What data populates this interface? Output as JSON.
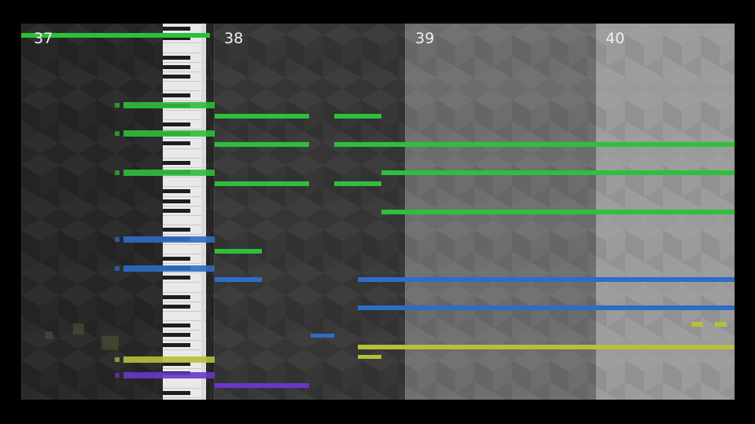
{
  "measures": [
    {
      "label": "37"
    },
    {
      "label": "38"
    },
    {
      "label": "39"
    },
    {
      "label": "40"
    }
  ],
  "colors": {
    "green": "#2fbf3a",
    "blue": "#2f6cc4",
    "yellow": "#b7bf3a",
    "purple": "#6a37c9",
    "dark_region": "#2b2b2b",
    "mid_region": "#3a3a3a",
    "gray_region": "#6b6b6b",
    "light_region": "#9b9b9b"
  },
  "notes": [
    {
      "color": "green",
      "track": "lead"
    },
    {
      "color": "green",
      "track": "lead"
    },
    {
      "color": "green",
      "track": "lead"
    },
    {
      "color": "green",
      "track": "lead"
    },
    {
      "color": "green",
      "track": "lead"
    },
    {
      "color": "green",
      "track": "lead"
    },
    {
      "color": "green",
      "track": "lead"
    },
    {
      "color": "green",
      "track": "lead"
    },
    {
      "color": "green",
      "track": "lead"
    },
    {
      "color": "green",
      "track": "lead"
    },
    {
      "color": "blue",
      "track": "mid"
    },
    {
      "color": "blue",
      "track": "mid"
    },
    {
      "color": "blue",
      "track": "mid"
    },
    {
      "color": "blue",
      "track": "mid"
    },
    {
      "color": "yellow",
      "track": "accent"
    },
    {
      "color": "yellow",
      "track": "accent"
    },
    {
      "color": "yellow",
      "track": "accent"
    },
    {
      "color": "yellow",
      "track": "accent"
    },
    {
      "color": "purple",
      "track": "bass"
    },
    {
      "color": "purple",
      "track": "bass"
    }
  ]
}
